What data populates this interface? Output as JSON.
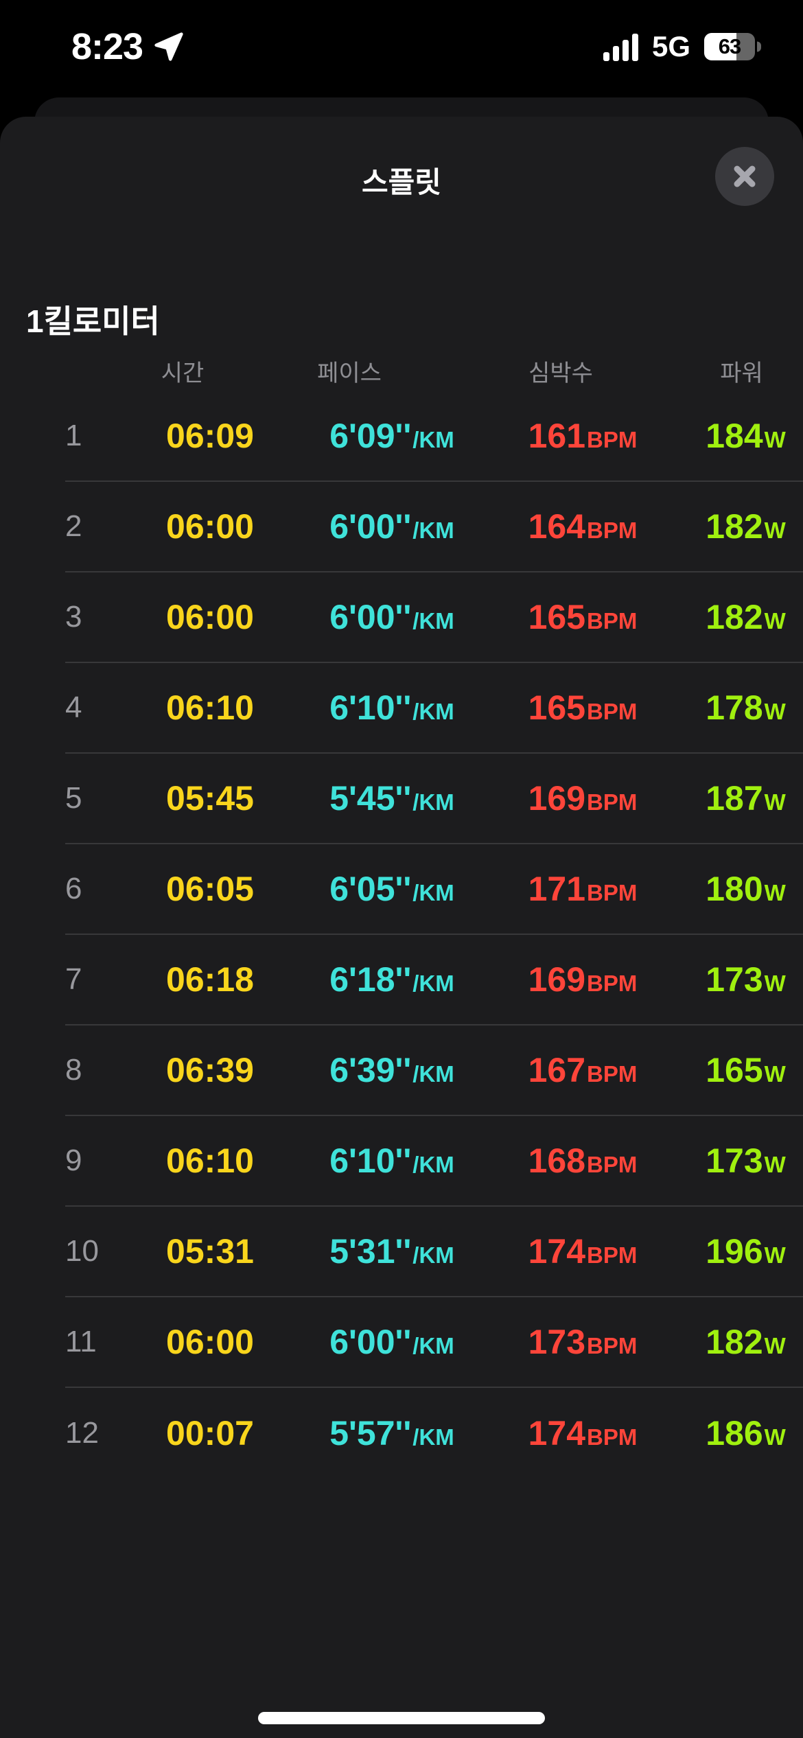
{
  "status_bar": {
    "time": "8:23",
    "location_icon": "location-arrow",
    "signal_icon": "cellular-signal-4-of-4",
    "network": "5G",
    "battery_icon": "battery-63-percent",
    "battery_percent": "63"
  },
  "sheet": {
    "title": "스플릿",
    "close_icon": "close-x"
  },
  "section": {
    "title": "1킬로미터"
  },
  "table": {
    "columns": [
      "시간",
      "페이스",
      "심박수",
      "파워"
    ],
    "rows": [
      {
        "index": "1",
        "time": "06:09",
        "pace": "6'09''",
        "pace_unit": "/KM",
        "hr": "161",
        "hr_unit": "BPM",
        "power": "184",
        "power_unit": "W"
      },
      {
        "index": "2",
        "time": "06:00",
        "pace": "6'00''",
        "pace_unit": "/KM",
        "hr": "164",
        "hr_unit": "BPM",
        "power": "182",
        "power_unit": "W"
      },
      {
        "index": "3",
        "time": "06:00",
        "pace": "6'00''",
        "pace_unit": "/KM",
        "hr": "165",
        "hr_unit": "BPM",
        "power": "182",
        "power_unit": "W"
      },
      {
        "index": "4",
        "time": "06:10",
        "pace": "6'10''",
        "pace_unit": "/KM",
        "hr": "165",
        "hr_unit": "BPM",
        "power": "178",
        "power_unit": "W"
      },
      {
        "index": "5",
        "time": "05:45",
        "pace": "5'45''",
        "pace_unit": "/KM",
        "hr": "169",
        "hr_unit": "BPM",
        "power": "187",
        "power_unit": "W"
      },
      {
        "index": "6",
        "time": "06:05",
        "pace": "6'05''",
        "pace_unit": "/KM",
        "hr": "171",
        "hr_unit": "BPM",
        "power": "180",
        "power_unit": "W"
      },
      {
        "index": "7",
        "time": "06:18",
        "pace": "6'18''",
        "pace_unit": "/KM",
        "hr": "169",
        "hr_unit": "BPM",
        "power": "173",
        "power_unit": "W"
      },
      {
        "index": "8",
        "time": "06:39",
        "pace": "6'39''",
        "pace_unit": "/KM",
        "hr": "167",
        "hr_unit": "BPM",
        "power": "165",
        "power_unit": "W"
      },
      {
        "index": "9",
        "time": "06:10",
        "pace": "6'10''",
        "pace_unit": "/KM",
        "hr": "168",
        "hr_unit": "BPM",
        "power": "173",
        "power_unit": "W"
      },
      {
        "index": "10",
        "time": "05:31",
        "pace": "5'31''",
        "pace_unit": "/KM",
        "hr": "174",
        "hr_unit": "BPM",
        "power": "196",
        "power_unit": "W"
      },
      {
        "index": "11",
        "time": "06:00",
        "pace": "6'00''",
        "pace_unit": "/KM",
        "hr": "173",
        "hr_unit": "BPM",
        "power": "182",
        "power_unit": "W"
      },
      {
        "index": "12",
        "time": "00:07",
        "pace": "5'57''",
        "pace_unit": "/KM",
        "hr": "174",
        "hr_unit": "BPM",
        "power": "186",
        "power_unit": "W"
      }
    ]
  },
  "colors": {
    "background": "#000000",
    "sheet": "#1C1C1E",
    "card_behind": "#161618",
    "separator": "#38383A",
    "time": "#F9D51C",
    "pace": "#3FE2DA",
    "heart_rate": "#FF453A",
    "power": "#A0F00F",
    "index_gray": "#98989D",
    "header_gray": "#8E8E93"
  }
}
